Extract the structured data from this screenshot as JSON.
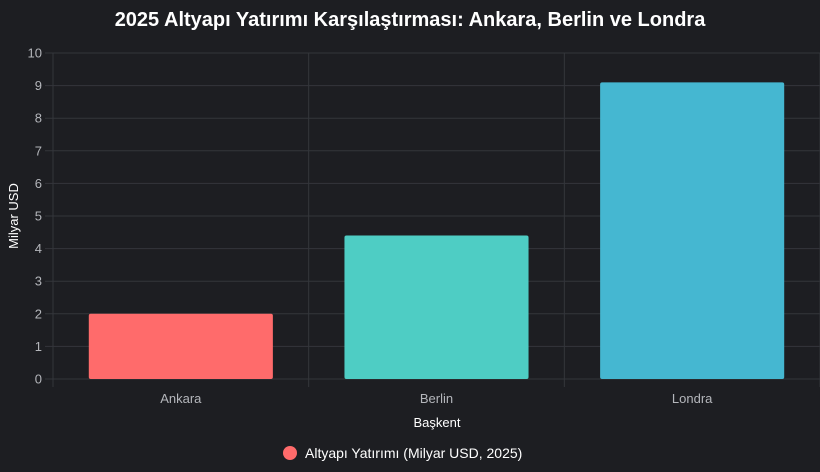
{
  "chart_data": {
    "type": "bar",
    "title": "2025 Altyapı Yatırımı Karşılaştırması: Ankara, Berlin ve Londra",
    "xlabel": "Başkent",
    "ylabel": "Milyar USD",
    "categories": [
      "Ankara",
      "Berlin",
      "Londra"
    ],
    "series": [
      {
        "name": "Altyapı Yatırımı (Milyar USD, 2025)",
        "values": [
          2.0,
          4.4,
          9.1
        ]
      }
    ],
    "bar_colors": [
      "#ff6b6b",
      "#4ecdc4",
      "#45b7d1"
    ],
    "ylim": [
      0,
      10
    ],
    "yticks": [
      0,
      1,
      2,
      3,
      4,
      5,
      6,
      7,
      8,
      9,
      10
    ],
    "grid": true,
    "legend_position": "bottom"
  }
}
